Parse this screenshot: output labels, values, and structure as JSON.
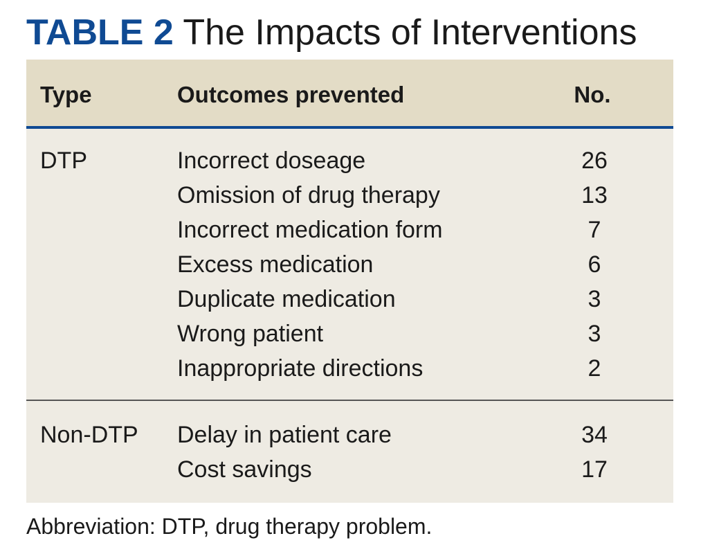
{
  "title": {
    "label": "TABLE 2",
    "text": "The Impacts of Interventions"
  },
  "table": {
    "headers": [
      "Type",
      "Outcomes prevented",
      "No."
    ],
    "groups": [
      {
        "type": "DTP",
        "rows": [
          {
            "outcome": "Incorrect doseage",
            "no": "26"
          },
          {
            "outcome": "Omission of drug therapy",
            "no": "13"
          },
          {
            "outcome": "Incorrect medication form",
            "no": "7"
          },
          {
            "outcome": "Excess medication",
            "no": "6"
          },
          {
            "outcome": "Duplicate medication",
            "no": "3"
          },
          {
            "outcome": "Wrong patient",
            "no": "3"
          },
          {
            "outcome": "Inappropriate directions",
            "no": "2"
          }
        ]
      },
      {
        "type": "Non-DTP",
        "rows": [
          {
            "outcome": "Delay in patient care",
            "no": "34"
          },
          {
            "outcome": "Cost savings",
            "no": "17"
          }
        ]
      }
    ]
  },
  "footnote": "Abbreviation: DTP, drug therapy problem."
}
